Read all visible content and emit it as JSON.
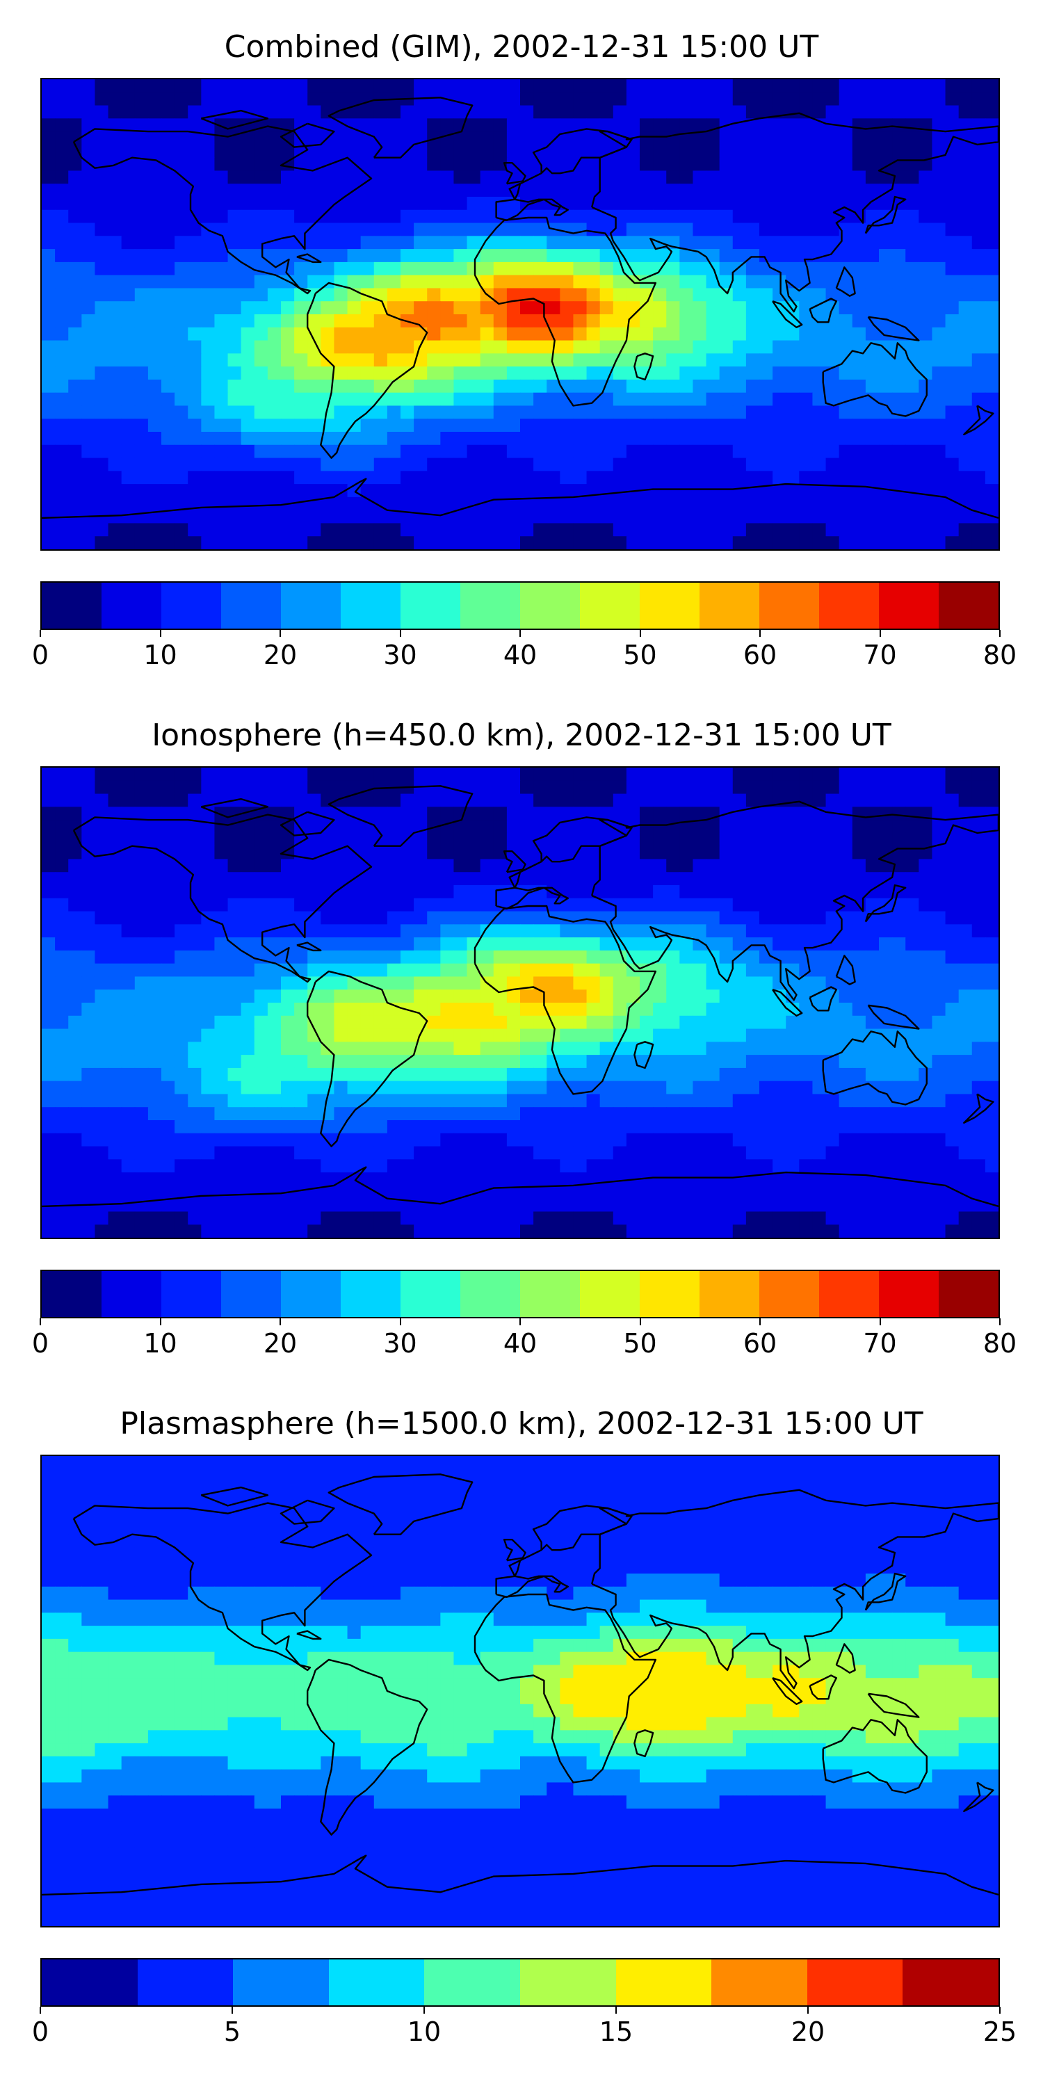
{
  "panels": [
    {
      "title": "Combined (GIM), 2002-12-31 15:00 UT",
      "scale_max": 80,
      "ticks": [
        "0",
        "10",
        "20",
        "30",
        "40",
        "50",
        "60",
        "70",
        "80"
      ],
      "colors": [
        "#00007f",
        "#0000e6",
        "#0020ff",
        "#005cff",
        "#0096ff",
        "#00d4ff",
        "#2affd4",
        "#60ff96",
        "#96ff60",
        "#d4ff23",
        "#ffe600",
        "#ffb000",
        "#ff7300",
        "#ff3800",
        "#e60000",
        "#990000"
      ],
      "field_hotspots": [
        {
          "lon": -30,
          "lat": -2,
          "value": 64
        },
        {
          "lon": 5,
          "lat": 2,
          "value": 70
        },
        {
          "lon": -55,
          "lat": -12,
          "value": 58
        },
        {
          "lon": 35,
          "lat": 0,
          "value": 52
        },
        {
          "lon": -80,
          "lat": -30,
          "value": 34
        }
      ]
    },
    {
      "title": "Ionosphere  (h=450.0 km), 2002-12-31 15:00 UT",
      "scale_max": 80,
      "ticks": [
        "0",
        "10",
        "20",
        "30",
        "40",
        "50",
        "60",
        "70",
        "80"
      ],
      "colors": [
        "#00007f",
        "#0000e6",
        "#0020ff",
        "#005cff",
        "#0096ff",
        "#00d4ff",
        "#2affd4",
        "#60ff96",
        "#96ff60",
        "#d4ff23",
        "#ffe600",
        "#ffb000",
        "#ff7300",
        "#ff3800",
        "#e60000",
        "#990000"
      ],
      "field_hotspots": [
        {
          "lon": -20,
          "lat": -5,
          "value": 54
        },
        {
          "lon": 10,
          "lat": 5,
          "value": 56
        },
        {
          "lon": -55,
          "lat": -10,
          "value": 48
        },
        {
          "lon": 40,
          "lat": 5,
          "value": 40
        },
        {
          "lon": -90,
          "lat": -25,
          "value": 30
        }
      ]
    },
    {
      "title": "Plasmasphere (h=1500.0 km), 2002-12-31 15:00 UT",
      "scale_max": 25,
      "ticks": [
        "0",
        "5",
        "10",
        "15",
        "20",
        "25"
      ],
      "colors": [
        "#00009f",
        "#0020ff",
        "#0080ff",
        "#00e0ff",
        "#4dffb0",
        "#b0ff4d",
        "#ffee00",
        "#ff8a00",
        "#ff3000",
        "#b00000"
      ],
      "field_hotspots": [
        {
          "lon": 55,
          "lat": 0,
          "value": 18
        },
        {
          "lon": 100,
          "lat": 0,
          "value": 15
        },
        {
          "lon": 140,
          "lat": -5,
          "value": 14
        },
        {
          "lon": -40,
          "lat": -8,
          "value": 11
        },
        {
          "lon": -170,
          "lat": -5,
          "value": 12
        }
      ]
    }
  ]
}
